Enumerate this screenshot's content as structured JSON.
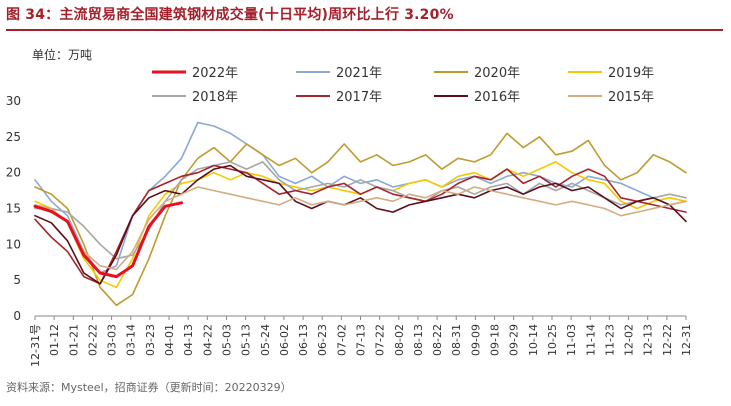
{
  "figure": {
    "title": "图 34：主流贸易商全国建筑钢材成交量(十日平均)周环比上行 3.20%",
    "unit": "单位：万吨",
    "source": "资料来源：Mysteel，招商证券（更新时间：20220329）"
  },
  "chart_data": {
    "type": "line",
    "ylim": [
      0,
      30
    ],
    "yticks": [
      "0",
      "5",
      "10",
      "15",
      "20",
      "25",
      "30"
    ],
    "xticks": [
      "12-31号",
      "01-12",
      "01-21",
      "02-22",
      "03-03",
      "03-14",
      "03-23",
      "04-01",
      "04-13",
      "04-22",
      "05-03",
      "05-13",
      "05-24",
      "06-02",
      "06-13",
      "06-23",
      "07-02",
      "07-13",
      "07-22",
      "08-02",
      "08-13",
      "08-22",
      "08-31",
      "09-09",
      "09-18",
      "09-29",
      "10-14",
      "10-25",
      "11-03",
      "11-14",
      "11-23",
      "12-02",
      "12-13",
      "12-22",
      "12-31"
    ],
    "series": [
      {
        "name": "2022年",
        "color": "#e8101e",
        "width": 3,
        "values": [
          15.3,
          14.6,
          13.2,
          8.5,
          6.0,
          5.5,
          7.0,
          12.5,
          15.3,
          15.8
        ]
      },
      {
        "name": "2021年",
        "color": "#8aa8d4",
        "width": 1.6,
        "values": [
          19.0,
          16.0,
          14.0,
          9.0,
          6.0,
          7.0,
          14.0,
          17.5,
          19.5,
          22.0,
          27.0,
          26.5,
          25.5,
          24.0,
          22.5,
          19.5,
          18.5,
          19.5,
          18.0,
          19.5,
          18.5,
          19.0,
          18.0,
          18.5,
          19.0,
          18.0,
          19.0,
          19.5,
          18.5,
          19.5,
          20.0,
          19.5,
          18.5,
          18.0,
          19.5,
          19.0,
          18.5,
          17.5,
          16.5,
          15.5,
          16.0
        ]
      },
      {
        "name": "2020年",
        "color": "#bf9b2f",
        "width": 1.6,
        "values": [
          18.0,
          17.0,
          15.0,
          10.0,
          4.0,
          1.5,
          3.0,
          8.0,
          14.0,
          19.0,
          22.0,
          23.5,
          21.5,
          24.0,
          22.5,
          21.0,
          22.0,
          20.0,
          21.5,
          24.0,
          21.5,
          22.5,
          21.0,
          21.5,
          22.5,
          20.5,
          22.0,
          21.5,
          22.5,
          25.5,
          23.5,
          25.0,
          22.5,
          23.0,
          24.5,
          21.0,
          19.0,
          20.0,
          22.5,
          21.5,
          20.0
        ]
      },
      {
        "name": "2019年",
        "color": "#f5c800",
        "width": 1.6,
        "values": [
          16.0,
          15.0,
          13.0,
          8.0,
          5.0,
          4.0,
          8.0,
          14.0,
          17.0,
          18.5,
          19.0,
          20.0,
          19.0,
          20.0,
          19.5,
          18.5,
          18.0,
          17.5,
          18.0,
          17.5,
          17.0,
          18.0,
          17.5,
          18.5,
          19.0,
          18.0,
          19.5,
          20.0,
          19.0,
          20.5,
          19.5,
          20.5,
          21.5,
          20.0,
          19.0,
          18.5,
          16.0,
          15.0,
          16.0,
          16.5,
          16.0
        ]
      },
      {
        "name": "2018年",
        "color": "#a6a6a6",
        "width": 1.6,
        "values": [
          15.0,
          15.0,
          14.5,
          12.5,
          10.0,
          8.0,
          8.5,
          12.0,
          16.0,
          19.0,
          20.5,
          21.0,
          21.5,
          20.5,
          21.5,
          19.0,
          17.5,
          18.0,
          18.5,
          18.0,
          19.0,
          18.0,
          17.5,
          16.5,
          16.0,
          17.5,
          18.0,
          17.0,
          18.0,
          18.5,
          17.0,
          18.5,
          17.5,
          18.5,
          17.5,
          16.5,
          15.5,
          16.0,
          16.5,
          17.0,
          16.5
        ]
      },
      {
        "name": "2017年",
        "color": "#a8232b",
        "width": 1.6,
        "values": [
          13.5,
          11.0,
          9.0,
          5.5,
          4.5,
          9.0,
          14.0,
          17.5,
          18.5,
          19.5,
          20.0,
          21.0,
          20.5,
          20.0,
          18.5,
          17.0,
          17.5,
          17.0,
          18.0,
          18.5,
          17.0,
          18.0,
          17.0,
          16.5,
          16.0,
          17.0,
          18.5,
          19.5,
          19.0,
          20.5,
          18.5,
          19.5,
          18.0,
          19.5,
          20.5,
          19.5,
          16.5,
          16.0,
          15.5,
          15.0,
          14.5
        ]
      },
      {
        "name": "2016年",
        "color": "#5a0f18",
        "width": 1.6,
        "values": [
          14.0,
          13.0,
          10.5,
          6.0,
          4.5,
          8.5,
          14.0,
          16.5,
          17.5,
          17.0,
          19.0,
          20.5,
          21.0,
          19.5,
          19.0,
          18.5,
          16.0,
          15.0,
          16.0,
          15.5,
          16.5,
          15.0,
          14.5,
          15.5,
          16.0,
          16.5,
          17.0,
          16.5,
          17.5,
          18.0,
          17.0,
          18.0,
          18.5,
          17.5,
          18.0,
          16.5,
          15.0,
          16.0,
          16.5,
          15.5,
          13.2
        ]
      },
      {
        "name": "2015年",
        "color": "#d4ac82",
        "width": 1.6,
        "values": [
          15.5,
          15.0,
          13.0,
          9.0,
          7.0,
          6.5,
          9.0,
          13.5,
          16.0,
          17.0,
          18.0,
          17.5,
          17.0,
          16.5,
          16.0,
          15.5,
          16.5,
          15.5,
          16.0,
          15.5,
          16.0,
          16.5,
          16.0,
          17.0,
          16.5,
          17.5,
          17.0,
          18.0,
          17.5,
          17.0,
          16.5,
          16.0,
          15.5,
          16.0,
          15.5,
          15.0,
          14.0,
          14.5,
          15.0,
          15.5,
          16.0
        ]
      }
    ]
  }
}
